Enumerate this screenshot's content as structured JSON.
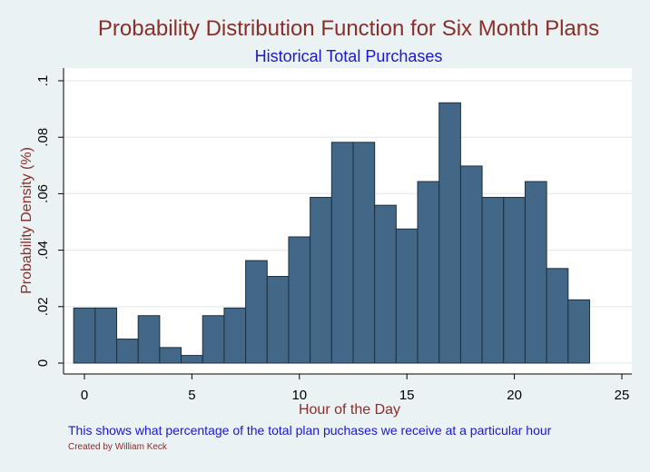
{
  "chart_data": {
    "type": "bar",
    "title": "Probability Distribution Function for Six Month Plans",
    "subtitle": "Historical Total Purchases",
    "xlabel": "Hour of the Day",
    "ylabel": "Probability Density (%)",
    "x_ticks": [
      "0",
      "5",
      "10",
      "15",
      "20",
      "25"
    ],
    "x_tick_values": [
      0,
      5,
      10,
      15,
      20,
      25
    ],
    "y_ticks": [
      "0",
      ".02",
      ".04",
      ".06",
      ".08",
      ".1"
    ],
    "y_tick_values": [
      0,
      0.02,
      0.04,
      0.06,
      0.08,
      0.1
    ],
    "xlim": [
      -0.5,
      25
    ],
    "ylim": [
      0,
      0.1
    ],
    "bin_width": 1,
    "x": [
      0,
      1,
      2,
      3,
      4,
      5,
      6,
      7,
      8,
      9,
      10,
      11,
      12,
      13,
      14,
      15,
      16,
      17,
      18,
      19,
      20,
      21,
      22,
      23
    ],
    "values": [
      0.0195,
      0.0195,
      0.0085,
      0.0168,
      0.0055,
      0.0027,
      0.0168,
      0.0195,
      0.0363,
      0.0307,
      0.0447,
      0.0587,
      0.0782,
      0.0782,
      0.0559,
      0.0475,
      0.0643,
      0.0922,
      0.0698,
      0.0587,
      0.0587,
      0.0643,
      0.0335,
      0.0224
    ],
    "grid": true,
    "colors": {
      "bar_fill": "#436887",
      "bar_stroke": "#1a2f42",
      "plot_bg": "#ffffff",
      "grid": "#e3ecee"
    }
  },
  "footer": {
    "note": "This shows what percentage of the total plan puchases we receive at a particular hour",
    "credit": "Created by William Keck"
  }
}
